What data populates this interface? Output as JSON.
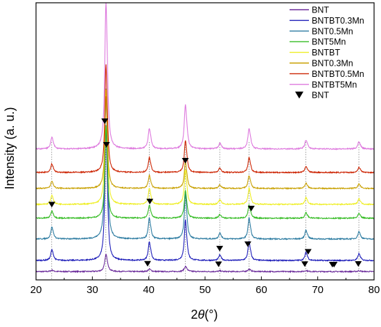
{
  "chart_data": {
    "type": "line",
    "xlabel_prefix": "2",
    "xlabel_theta": "θ",
    "xlabel_unit": "(°)",
    "ylabel": "Intensity (a. u.)",
    "xlim": [
      20,
      80
    ],
    "x_ticks": [
      "20",
      "30",
      "40",
      "50",
      "60",
      "70",
      "80"
    ],
    "y_ticks_shown": false,
    "legend_position": "top-right",
    "series": [
      {
        "name": "BNT",
        "color": "#6a2a9a"
      },
      {
        "name": "BNTBT0.3Mn",
        "color": "#1a1ab8"
      },
      {
        "name": "BNT0.5Mn",
        "color": "#2a7aa0"
      },
      {
        "name": "BNT5Mn",
        "color": "#33bb22"
      },
      {
        "name": "BNTBT",
        "color": "#eeee22"
      },
      {
        "name": "BNT0.3Mn",
        "color": "#c8a000"
      },
      {
        "name": "BNTBT0.5Mn",
        "color": "#cc2200"
      },
      {
        "name": "BNTBT5Mn",
        "color": "#dd77dd"
      }
    ],
    "peaks_2theta": [
      22.8,
      32.4,
      40.1,
      46.5,
      52.6,
      57.8,
      67.9,
      77.3
    ],
    "bnt_marker_label": "BNT",
    "bnt_markers": [
      {
        "series": "BNTBT5Mn",
        "x": 32.2
      },
      {
        "series": "BNTBT0.5Mn",
        "x": 32.5
      },
      {
        "series": "BNT0.3Mn",
        "x": 46.5
      },
      {
        "series": "BNT5Mn",
        "x": 58.2
      },
      {
        "series": "BNT5Mn",
        "x": 22.8
      },
      {
        "series": "BNT5Mn",
        "x": 40.2
      },
      {
        "series": "BNTBT0.3Mn",
        "x": 52.6
      },
      {
        "series": "BNTBT0.3Mn",
        "x": 57.6
      },
      {
        "series": "BNTBT0.3Mn",
        "x": 68.3
      },
      {
        "series": "BNT",
        "x": 39.8
      },
      {
        "series": "BNT",
        "x": 52.4
      },
      {
        "series": "BNT",
        "x": 67.7
      },
      {
        "series": "BNT",
        "x": 72.6
      },
      {
        "series": "BNT",
        "x": 72.9
      },
      {
        "series": "BNT",
        "x": 77.2
      }
    ]
  }
}
